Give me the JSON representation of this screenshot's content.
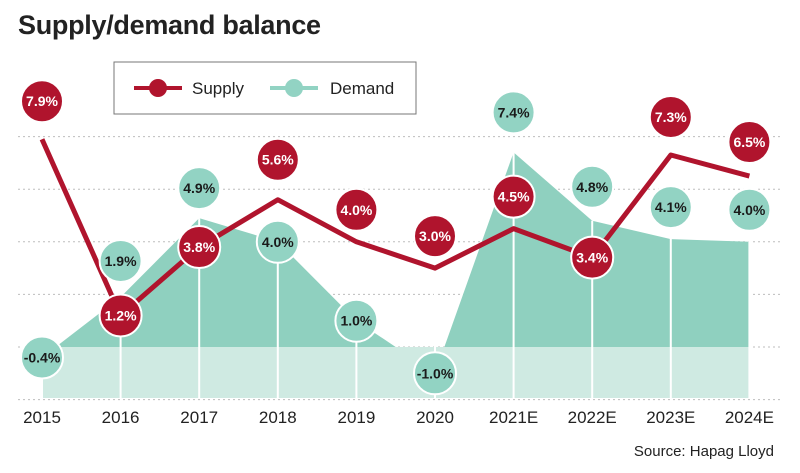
{
  "title": "Supply/demand balance",
  "source": "Source: Hapag Lloyd",
  "colors": {
    "supply": "#b0142d",
    "demand": "#92d3c3",
    "demand_fill": "#8fd0bf",
    "demand_light": "#cfeae2"
  },
  "chart_data": {
    "type": "line",
    "categories": [
      "2015",
      "2016",
      "2017",
      "2018",
      "2019",
      "2020",
      "2021E",
      "2022E",
      "2023E",
      "2024E"
    ],
    "series": [
      {
        "name": "Supply",
        "values": [
          7.9,
          1.2,
          3.8,
          5.6,
          4.0,
          3.0,
          4.5,
          3.4,
          7.3,
          6.5
        ],
        "labels": [
          "7.9%",
          "1.2%",
          "3.8%",
          "5.6%",
          "4.0%",
          "3.0%",
          "4.5%",
          "3.4%",
          "7.3%",
          "6.5%"
        ]
      },
      {
        "name": "Demand",
        "values": [
          -0.4,
          1.9,
          4.9,
          4.0,
          1.0,
          -1.0,
          7.4,
          4.8,
          4.1,
          4.0
        ],
        "labels": [
          "-0.4%",
          "1.9%",
          "4.9%",
          "4.0%",
          "1.0%",
          "-1.0%",
          "7.4%",
          "4.8%",
          "4.1%",
          "4.0%"
        ]
      }
    ],
    "legend_position": "top-left",
    "grid": true
  }
}
